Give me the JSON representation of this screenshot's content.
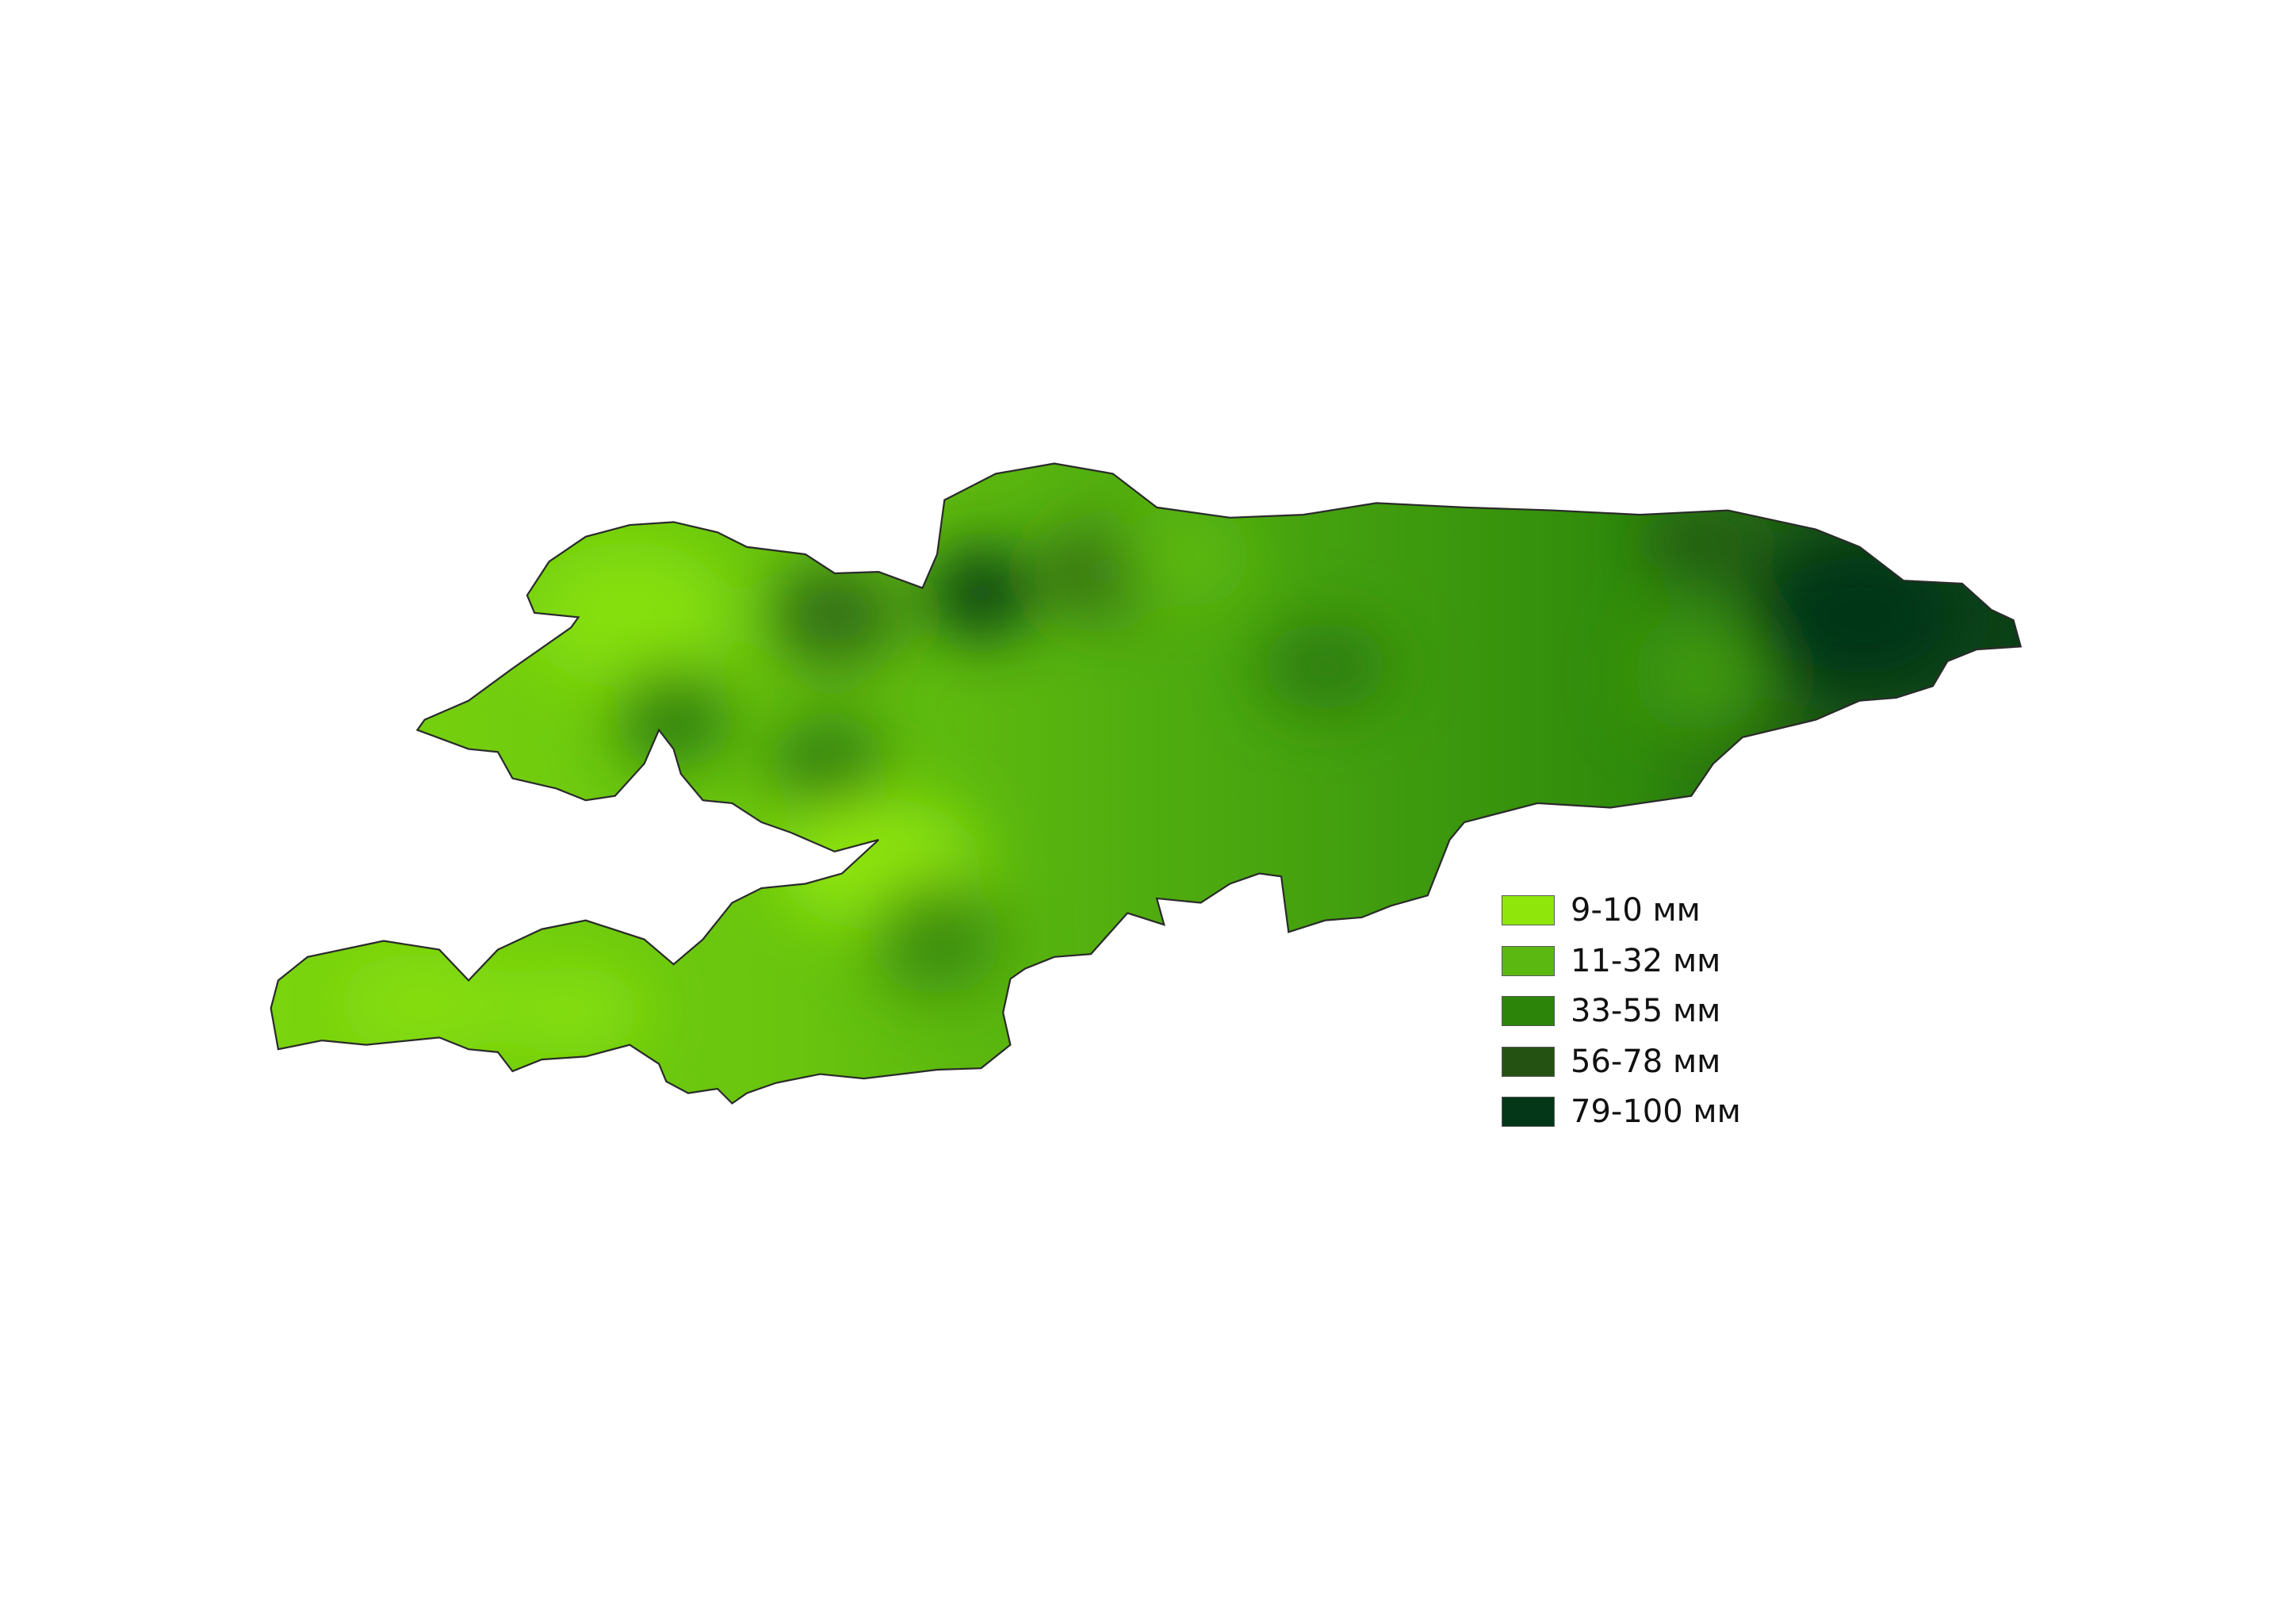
{
  "legend": {
    "items": [
      {
        "label": "9-10 мм",
        "color": "#8fe60a"
      },
      {
        "label": "11-32 мм",
        "color": "#5bb811"
      },
      {
        "label": "33-55 мм",
        "color": "#2c8409"
      },
      {
        "label": "56-78 мм",
        "color": "#245212"
      },
      {
        "label": "79-100 мм",
        "color": "#043618"
      }
    ]
  },
  "map": {
    "outline_color": "#2a2a2a",
    "background": "#ffffff"
  }
}
